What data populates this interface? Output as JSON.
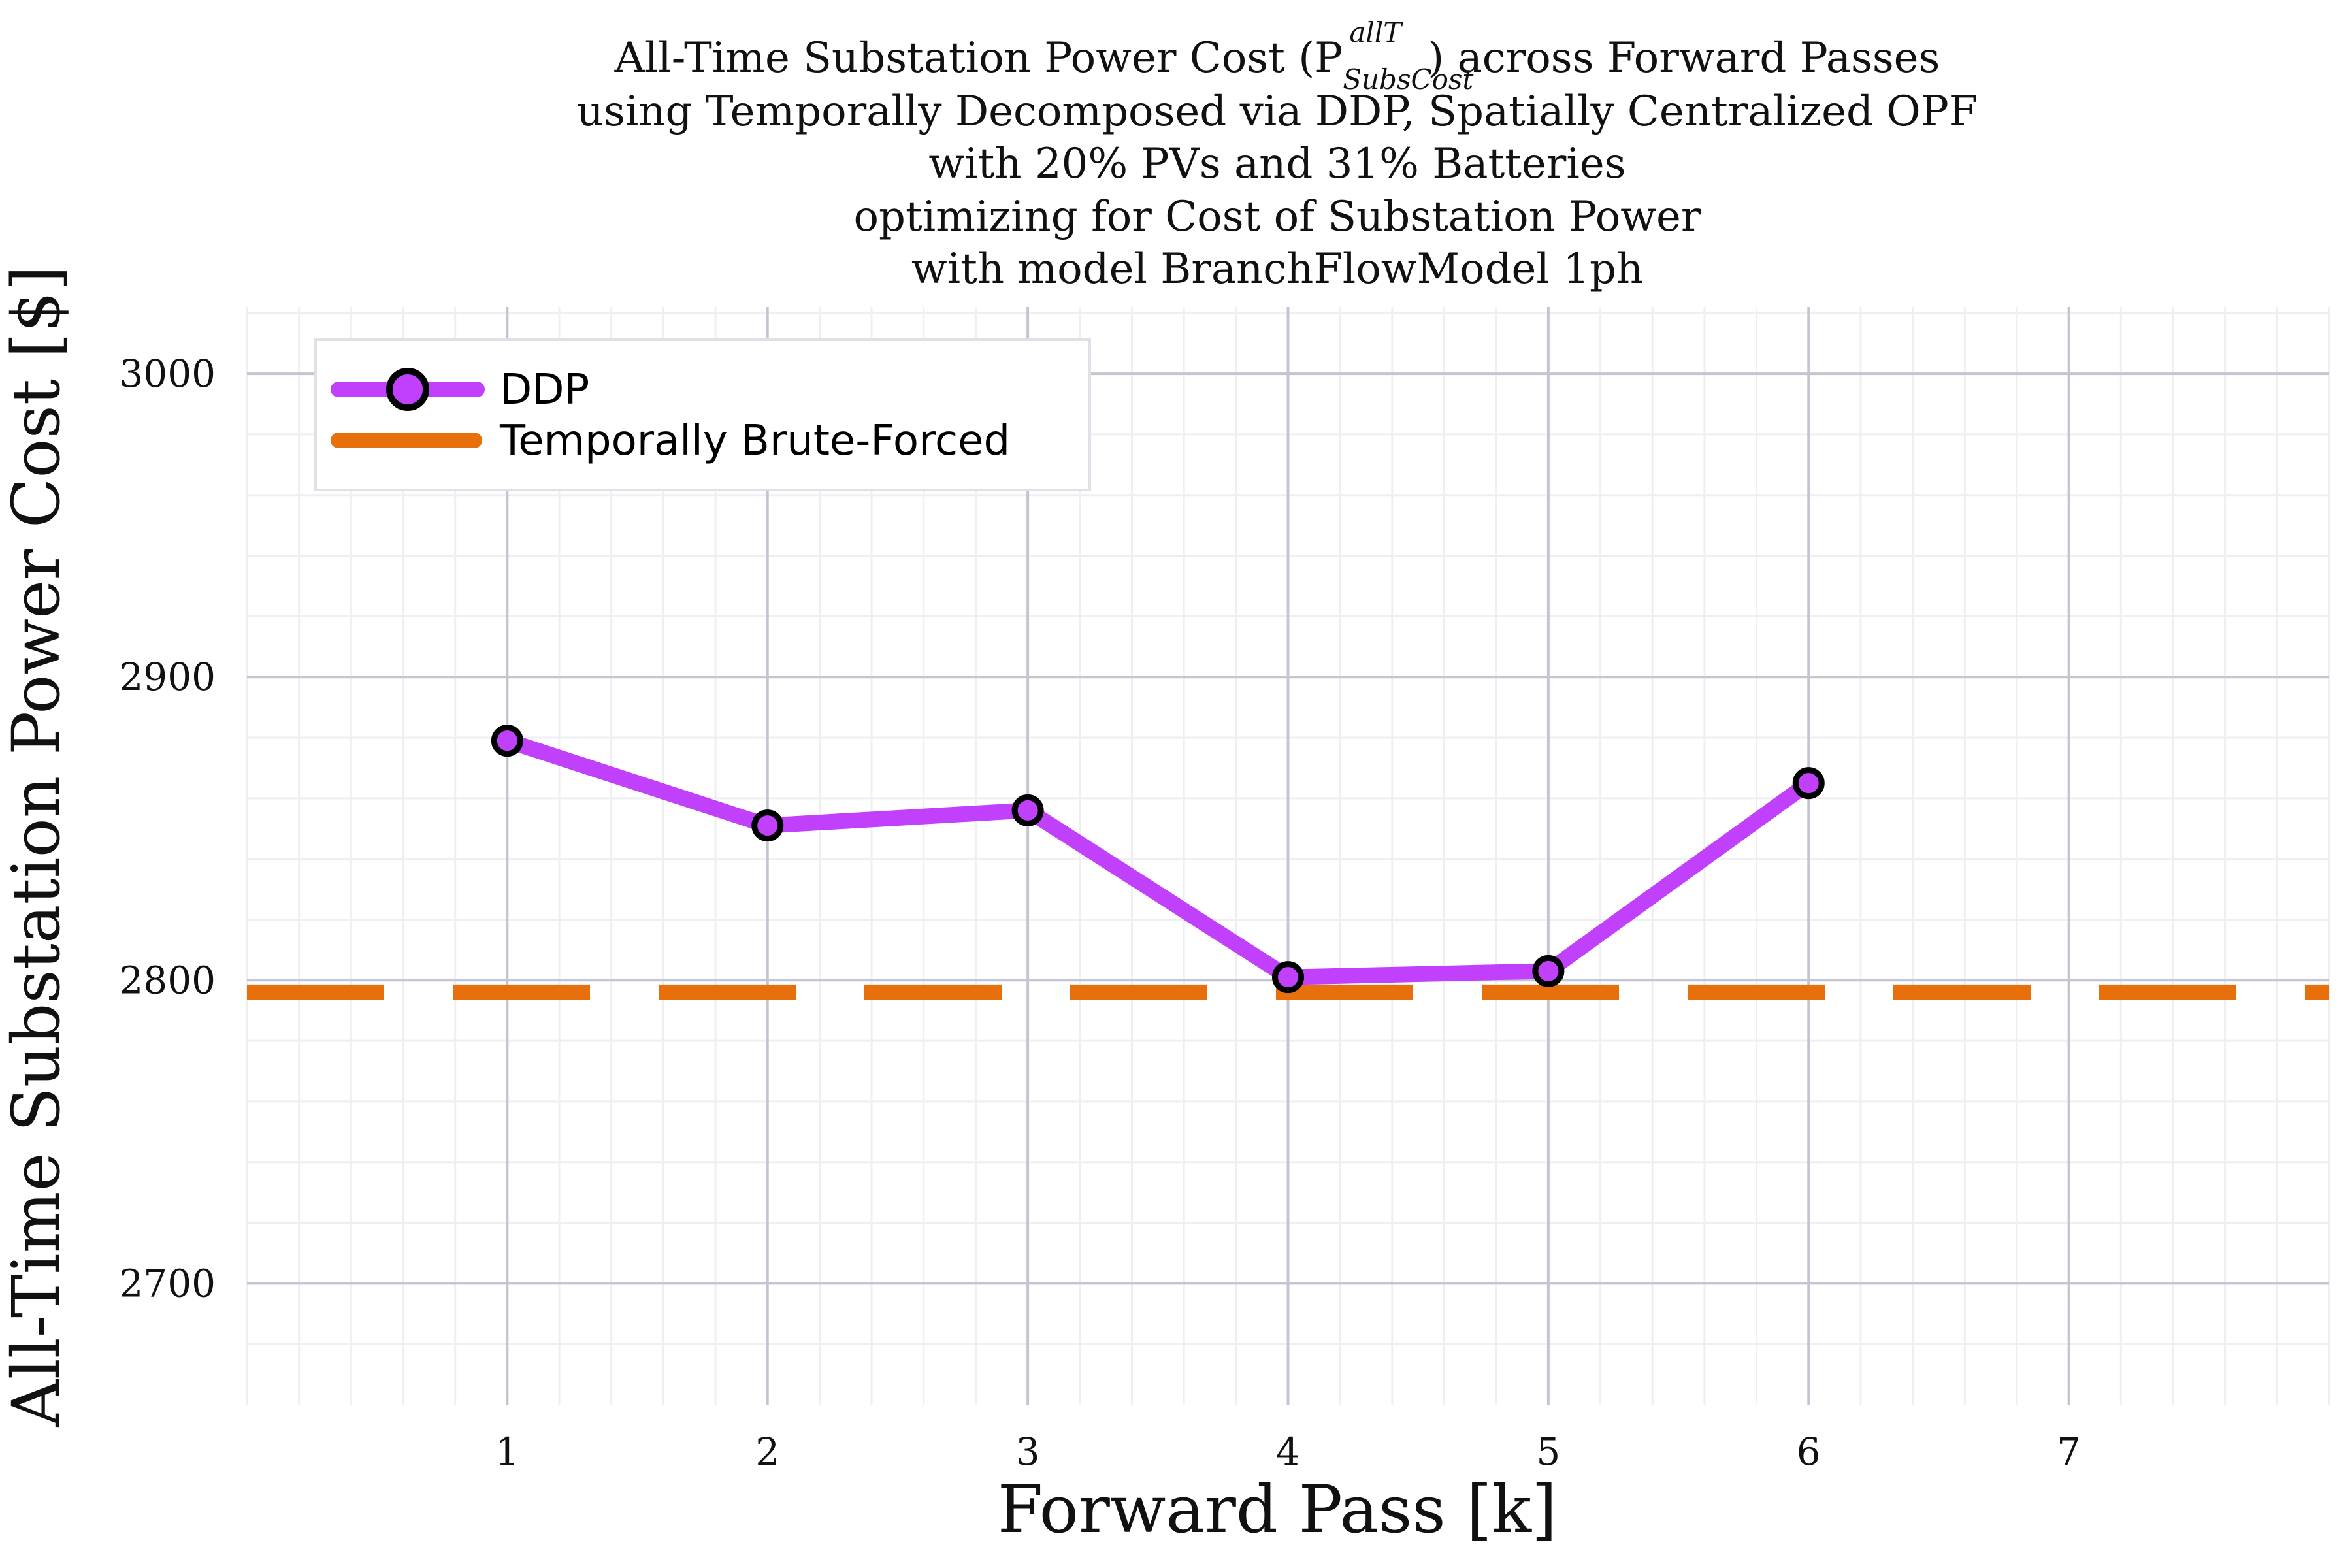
{
  "chart_data": {
    "type": "line",
    "title_lines": [
      "All-Time Substation Power Cost (P",
      "using Temporally Decomposed via DDP, Spatially Centralized OPF",
      "with 20% PVs and 31% Batteries",
      "optimizing for Cost of Substation Power",
      "with model BranchFlowModel 1ph"
    ],
    "title_symbol": {
      "sup": "allT",
      "sub": "SubsCost",
      "suffix": ") across Forward Passes"
    },
    "xlabel": "Forward Pass [k]",
    "ylabel": "All-Time Substation Power Cost [$]",
    "xlim": [
      0,
      8
    ],
    "ylim": [
      2660,
      3022
    ],
    "x_ticks": [
      1,
      2,
      3,
      4,
      5,
      6,
      7
    ],
    "y_ticks": [
      2700,
      2800,
      2900,
      3000
    ],
    "grid": true,
    "legend_position": "top-left",
    "series": [
      {
        "name": "DDP",
        "style": "solid-markers",
        "color": "#c040fb",
        "x": [
          1,
          2,
          3,
          4,
          5,
          6
        ],
        "y": [
          2879,
          2851,
          2856,
          2801,
          2803,
          2865
        ]
      },
      {
        "name": "Temporally Brute-Forced",
        "style": "dashed-hline",
        "color": "#e8700c",
        "y_value": 2796
      }
    ]
  }
}
